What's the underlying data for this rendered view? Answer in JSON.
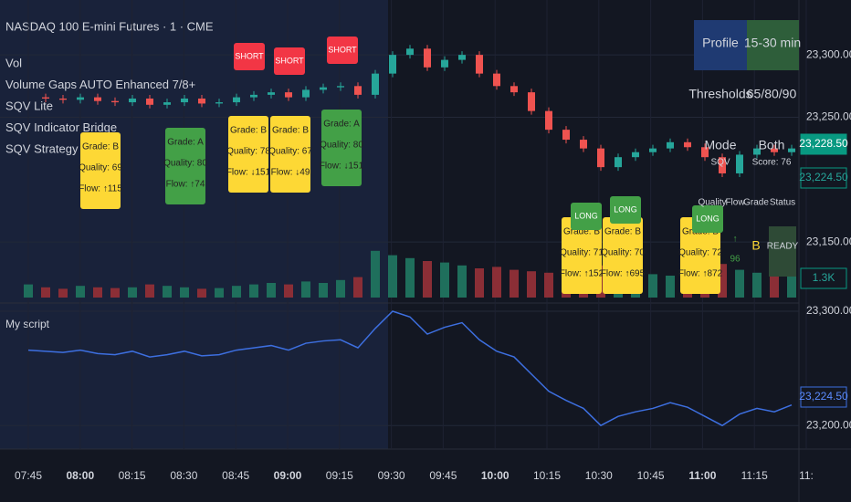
{
  "chart_data": {
    "type": "candlestick",
    "title": "NASDAQ 100 E-mini Futures · 1 · CME",
    "indicators": [
      "Vol",
      "Volume Gaps AUTO Enhanced 7/8+",
      "SQV Lite",
      "SQV Indicator Bridge",
      "SQV Strategy Bridge"
    ],
    "series": [
      {
        "name": "Price",
        "up_color": "#26a69a",
        "down_color": "#ef5350",
        "values": [
          23266,
          23265,
          23264,
          23266,
          23263,
          23262,
          23265,
          23260,
          23262,
          23265,
          23261,
          23262,
          23266,
          23268,
          23270,
          23266,
          23272,
          23274,
          23275,
          23268,
          23285,
          23300,
          23305,
          23290,
          23296,
          23300,
          23285,
          23275,
          23270,
          23255,
          23240,
          23232,
          23225,
          23210,
          23218,
          23222,
          23225,
          23230,
          23226,
          23218,
          23205,
          23220,
          23225,
          23222,
          23225
        ]
      }
    ],
    "volume": {
      "color_up": "#1f6f5c",
      "color_down": "#8b2e36",
      "values": [
        900,
        700,
        600,
        800,
        700,
        650,
        700,
        900,
        800,
        700,
        600,
        650,
        800,
        900,
        1000,
        900,
        1100,
        1000,
        1200,
        1400,
        3200,
        2900,
        2700,
        2500,
        2400,
        2200,
        2000,
        2100,
        1900,
        1800,
        1700,
        1900,
        2000,
        2200,
        1800,
        1700,
        1600,
        1500,
        1700,
        1900,
        2300,
        1900,
        1700,
        1600,
        1500
      ]
    },
    "ylim": [
      23104,
      23344
    ],
    "yticks": [
      {
        "value": 23300,
        "label": "23,300.00"
      },
      {
        "value": 23250,
        "label": "23,250.00"
      },
      {
        "value": 23150,
        "label": "23,150.00"
      }
    ],
    "xticks": [
      "07:45",
      "08:00",
      "08:15",
      "08:30",
      "08:45",
      "09:00",
      "09:15",
      "09:30",
      "09:45",
      "10:00",
      "10:15",
      "10:30",
      "10:45",
      "11:00",
      "11:15",
      "11:"
    ],
    "price_badges": [
      "23,228.50",
      "23,224.50",
      "1.3K"
    ],
    "annotations": [
      {
        "lines": [
          "Grade: B",
          "Quality: 69",
          "Flow: ↑115"
        ],
        "color": "#fdd835"
      },
      {
        "lines": [
          "Grade: A",
          "Quality: 80",
          "Flow: ↑74"
        ],
        "color": "#43a047"
      },
      {
        "lines": [
          "Grade: B",
          "Quality: 78",
          "Flow: ↓151"
        ],
        "color": "#fdd835"
      },
      {
        "lines": [
          "Grade: B",
          "Quality: 67",
          "Flow: ↓49"
        ],
        "color": "#fdd835"
      },
      {
        "lines": [
          "Grade: A",
          "Quality: 80",
          "Flow: ↓151"
        ],
        "color": "#43a047"
      },
      {
        "lines": [
          "Grade: B",
          "Quality: 71",
          "Flow: ↑152"
        ],
        "color": "#fdd835"
      },
      {
        "lines": [
          "Grade: B",
          "Quality: 70",
          "Flow: ↑695"
        ],
        "color": "#fdd835"
      },
      {
        "lines": [
          "Grade: B",
          "Quality: 72",
          "Flow: ↑872"
        ],
        "color": "#fdd835"
      }
    ],
    "signals": [
      "SHORT",
      "SHORT",
      "SHORT",
      "LONG",
      "LONG",
      "LONG"
    ],
    "table": {
      "rows": [
        [
          "Profile",
          "15-30 min"
        ],
        [
          "Thresholds",
          "65/80/90"
        ],
        [
          "Mode",
          "Both"
        ],
        [
          "SQV",
          "Score: 76"
        ],
        [
          "Quality",
          "Flow",
          "Grade",
          "Status"
        ],
        [
          "↑",
          "96",
          "B",
          "READY"
        ]
      ]
    },
    "script": {
      "title": "My script",
      "color": "#3d6fe0",
      "values": [
        23266,
        23265,
        23264,
        23266,
        23263,
        23262,
        23265,
        23260,
        23262,
        23265,
        23261,
        23262,
        23266,
        23268,
        23270,
        23266,
        23272,
        23274,
        23275,
        23268,
        23285,
        23300,
        23295,
        23280,
        23286,
        23290,
        23275,
        23265,
        23260,
        23245,
        23230,
        23222,
        23215,
        23200,
        23208,
        23212,
        23215,
        23220,
        23216,
        23208,
        23200,
        23210,
        23215,
        23212,
        23218
      ],
      "ylim": [
        23181,
        23304
      ],
      "yticks": [
        {
          "value": 23300,
          "label": "23,300.00"
        },
        {
          "value": 23200,
          "label": "23,200.00"
        }
      ],
      "badge": "23,224.50"
    }
  }
}
